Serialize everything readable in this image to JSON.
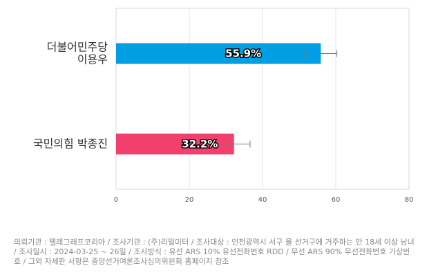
{
  "chart_data": {
    "type": "bar",
    "orientation": "horizontal",
    "categories": [
      [
        "더불어민주당",
        "이용우"
      ],
      [
        "국민의힘 박종진"
      ]
    ],
    "values": [
      55.9,
      32.2
    ],
    "value_labels": [
      "55.9%",
      "32.2%"
    ],
    "error_margin": 4.4,
    "colors": [
      "#009fe3",
      "#f2406d"
    ],
    "xlim": [
      0,
      80
    ],
    "xticks": [
      0,
      20,
      40,
      60,
      80
    ],
    "grid": true
  },
  "footnote": "의뢰기관 : 텔레그래프코리아 / 조사기관 : (주)리얼미터 / 조사대상 : 인천광역시 서구 을 선거구에 거주하는 만 18세 이상 남녀 / 조사일시 : 2024-03-25 ~ 26일 / 조사방식 : 유선 ARS 10% 유선전화번호 RDD / 무선 ARS 90% 무선전화번호 가상번호 / 그외 자세한 사항은 중앙선거여론조사심의위원회 홈페이지 참조"
}
